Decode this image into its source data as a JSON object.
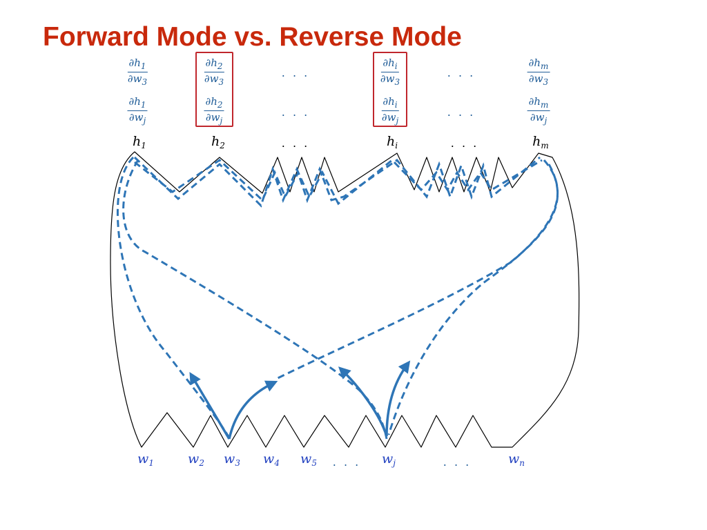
{
  "title": "Forward Mode vs. Reverse Mode",
  "derivative_rows": [
    {
      "cells": [
        {
          "num_base": "∂h",
          "num_sub": "1",
          "den_base": "∂w",
          "den_sub": "3"
        },
        {
          "num_base": "∂h",
          "num_sub": "2",
          "den_base": "∂w",
          "den_sub": "3"
        },
        {
          "dots": ". . ."
        },
        {
          "num_base": "∂h",
          "num_sub": "i",
          "den_base": "∂w",
          "den_sub": "3"
        },
        {
          "dots": ". . ."
        },
        {
          "num_base": "∂h",
          "num_sub": "m",
          "den_base": "∂w",
          "den_sub": "3"
        }
      ]
    },
    {
      "cells": [
        {
          "num_base": "∂h",
          "num_sub": "1",
          "den_base": "∂w",
          "den_sub": "j"
        },
        {
          "num_base": "∂h",
          "num_sub": "2",
          "den_base": "∂w",
          "den_sub": "j"
        },
        {
          "dots": ". . ."
        },
        {
          "num_base": "∂h",
          "num_sub": "i",
          "den_base": "∂w",
          "den_sub": "j"
        },
        {
          "dots": ". . ."
        },
        {
          "num_base": "∂h",
          "num_sub": "m",
          "den_base": "∂w",
          "den_sub": "j"
        }
      ]
    }
  ],
  "outputs": [
    {
      "base": "h",
      "sub": "1"
    },
    {
      "base": "h",
      "sub": "2"
    },
    {
      "dots": ". . ."
    },
    {
      "base": "h",
      "sub": "i"
    },
    {
      "dots": ". . ."
    },
    {
      "base": "h",
      "sub": "m"
    }
  ],
  "inputs": [
    {
      "base": "w",
      "sub": "1"
    },
    {
      "base": "w",
      "sub": "2"
    },
    {
      "base": "w",
      "sub": "3"
    },
    {
      "base": "w",
      "sub": "4"
    },
    {
      "base": "w",
      "sub": "5"
    },
    {
      "dots": ". . ."
    },
    {
      "base": "w",
      "sub": "j"
    },
    {
      "dots": ". . ."
    },
    {
      "base": "w",
      "sub": "n"
    }
  ],
  "highlighted_columns": [
    "h_2",
    "h_i"
  ],
  "colors": {
    "title": "#c8290c",
    "derivative_text": "#1f5c97",
    "input_text": "#1f3fbf",
    "path_dashed": "#2e75b6",
    "arrow": "#2e75b6",
    "highlight_box": "#c0262c",
    "outline": "#000000"
  }
}
